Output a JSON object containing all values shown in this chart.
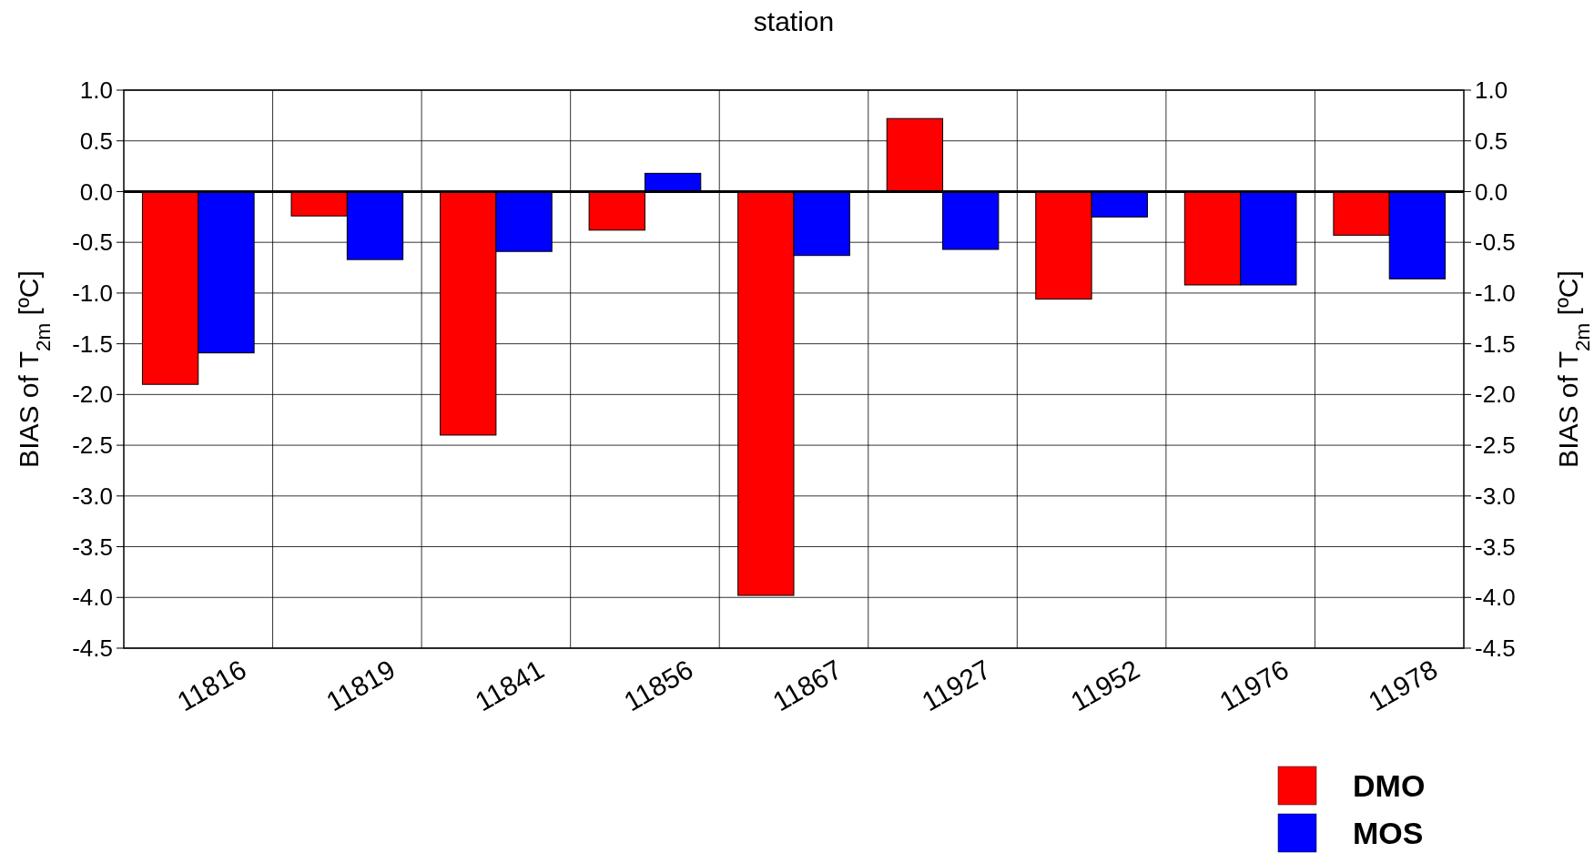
{
  "chart_data": {
    "type": "bar",
    "title": "station",
    "ylabel": "BIAS of T$_{2m}$ [ºC]",
    "y2label": "BIAS of T$_{2m}$ [ºC]",
    "categories": [
      "11816",
      "11819",
      "11841",
      "11856",
      "11867",
      "11927",
      "11952",
      "11976",
      "11978"
    ],
    "series": [
      {
        "name": "DMO",
        "color": "#ff0000",
        "values": [
          -1.9,
          -0.24,
          -2.4,
          -0.38,
          -3.98,
          0.72,
          -1.06,
          -0.92,
          -0.43
        ]
      },
      {
        "name": "MOS",
        "color": "#0000ff",
        "values": [
          -1.59,
          -0.67,
          -0.59,
          0.18,
          -0.63,
          -0.57,
          -0.25,
          -0.92,
          -0.86
        ]
      }
    ],
    "ylim": [
      -4.5,
      1.0
    ],
    "yticks": [
      {
        "value": 1,
        "label": "1.0"
      },
      {
        "value": 0.5,
        "label": "0.5"
      },
      {
        "value": 0,
        "label": "0.0"
      },
      {
        "value": -0.5,
        "label": "-0.5"
      },
      {
        "value": -1,
        "label": "-1.0"
      },
      {
        "value": -1.5,
        "label": "-1.5"
      },
      {
        "value": -2,
        "label": "-2.0"
      },
      {
        "value": -2.5,
        "label": "-2.5"
      },
      {
        "value": -3,
        "label": "-3.0"
      },
      {
        "value": -3.5,
        "label": "-3.5"
      },
      {
        "value": -4,
        "label": "-4.0"
      },
      {
        "value": -4.5,
        "label": "-4.5"
      }
    ],
    "y2lim": [
      -4.5,
      1.0
    ],
    "y2ticks": [
      {
        "value": 1,
        "label": "1.0"
      },
      {
        "value": 0.5,
        "label": "0.5"
      },
      {
        "value": 0,
        "label": "0.0"
      },
      {
        "value": -0.5,
        "label": "-0.5"
      },
      {
        "value": -1,
        "label": "-1.0"
      },
      {
        "value": -1.5,
        "label": "-1.5"
      },
      {
        "value": -2,
        "label": "-2.0"
      },
      {
        "value": -2.5,
        "label": "-2.5"
      },
      {
        "value": -3,
        "label": "-3.0"
      },
      {
        "value": -3.5,
        "label": "-3.5"
      },
      {
        "value": -4,
        "label": "-4.0"
      },
      {
        "value": -4.5,
        "label": "-4.5"
      }
    ],
    "grid": true,
    "legend": "bottom right"
  }
}
